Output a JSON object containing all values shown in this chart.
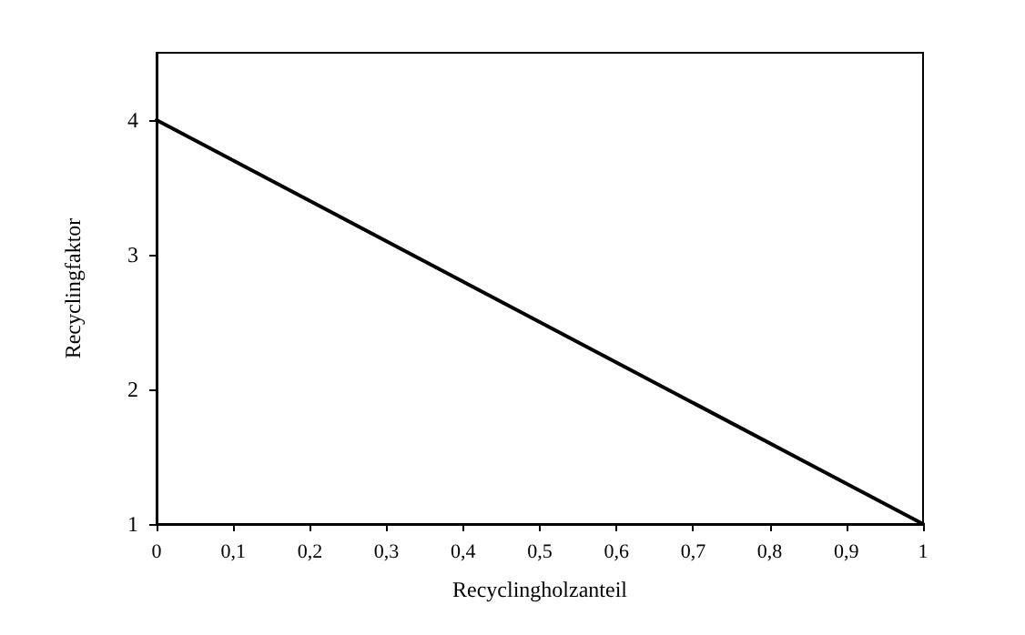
{
  "chart_data": {
    "type": "line",
    "xlabel": "Recyclingholzanteil",
    "ylabel": "Recyclingfaktor",
    "x": [
      0,
      1
    ],
    "series": [
      {
        "color": "#000000",
        "values": [
          4,
          1
        ]
      }
    ],
    "xlim": [
      0,
      1
    ],
    "xticks": [
      0,
      {
        "value": 0.1,
        "label": "0,1"
      },
      {
        "value": 0.2,
        "label": "0,2"
      },
      {
        "value": 0.3,
        "label": "0,3"
      },
      {
        "value": 0.4,
        "label": "0,4"
      },
      {
        "value": 0.5,
        "label": "0,5"
      },
      {
        "value": 0.6,
        "label": "0,6"
      },
      {
        "value": 0.7,
        "label": "0,7"
      },
      {
        "value": 0.8,
        "label": "0,8"
      },
      {
        "value": 0.9,
        "label": "0,9"
      },
      1
    ],
    "ylim": [
      1,
      4.5
    ],
    "yticks": [
      1,
      2,
      3,
      4
    ],
    "grid": false,
    "marker": "none",
    "line_style": "solid"
  }
}
